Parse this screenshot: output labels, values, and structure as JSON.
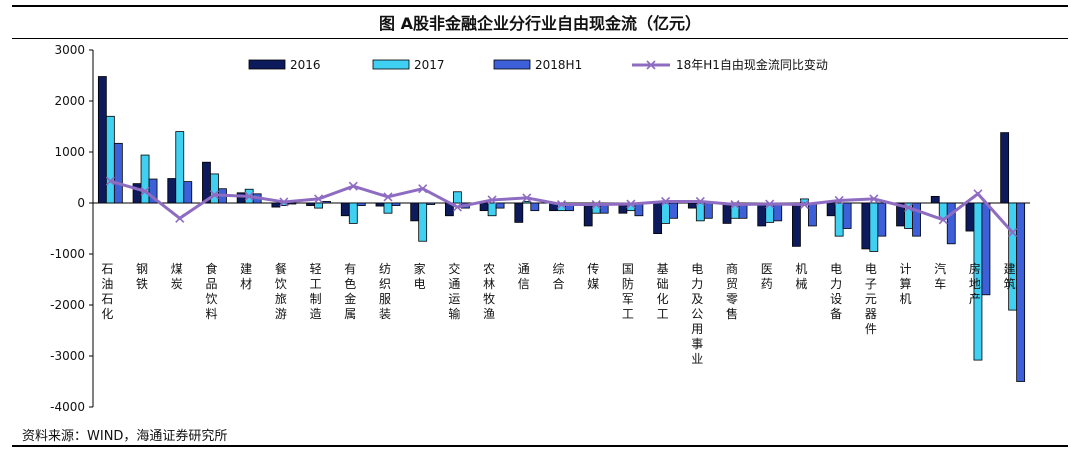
{
  "title": "图 A股非金融企业分行业自由现金流（亿元）",
  "source": "资料来源：WIND，海通证券研究所",
  "colors": {
    "s2016": "#0d1a5c",
    "s2017": "#3fd0f2",
    "s2018": "#3d5fd8",
    "line": "#8e6cc2"
  },
  "chart_data": {
    "type": "bar",
    "ylim": [
      -4000,
      3000
    ],
    "yticks": [
      "3000",
      "2000",
      "1000",
      "0",
      "-1000",
      "-2000",
      "-3000",
      "-4000"
    ],
    "legend_position": "top",
    "categories": [
      "石油石化",
      "钢铁",
      "煤炭",
      "食品饮料",
      "建材",
      "餐饮旅游",
      "轻工制造",
      "有色金属",
      "纺织服装",
      "家电",
      "交通运输",
      "农林牧渔",
      "通信",
      "综合",
      "传媒",
      "国防军工",
      "基础化工",
      "电力及公用事业",
      "商贸零售",
      "医药",
      "机械",
      "电力设备",
      "电子元器件",
      "计算机",
      "汽车",
      "房地产",
      "建筑"
    ],
    "series": [
      {
        "name": "2016",
        "kind": "bar",
        "values": [
          2480,
          380,
          480,
          800,
          200,
          -80,
          -50,
          -250,
          -60,
          -350,
          -250,
          -150,
          -380,
          -150,
          -450,
          -200,
          -600,
          -100,
          -400,
          -450,
          -850,
          -250,
          -900,
          -450,
          130,
          -550,
          1380
        ]
      },
      {
        "name": "2017",
        "kind": "bar",
        "values": [
          1700,
          940,
          1400,
          570,
          270,
          -50,
          -100,
          -400,
          -200,
          -750,
          220,
          -250,
          30,
          -150,
          -200,
          -150,
          -400,
          -350,
          -300,
          -380,
          80,
          -650,
          -950,
          -500,
          -300,
          -3080,
          -2100
        ]
      },
      {
        "name": "2018H1",
        "kind": "bar",
        "values": [
          1170,
          470,
          420,
          280,
          180,
          -20,
          30,
          -50,
          -50,
          -30,
          -100,
          -100,
          -150,
          -150,
          -200,
          -250,
          -300,
          -300,
          -300,
          -350,
          -450,
          -500,
          -650,
          -650,
          -800,
          -1800,
          -3500
        ]
      },
      {
        "name": "18年H1自由现金流同比变动",
        "kind": "line",
        "values": [
          430,
          230,
          -300,
          160,
          130,
          20,
          80,
          330,
          120,
          280,
          -80,
          60,
          100,
          -30,
          -30,
          -20,
          30,
          30,
          -30,
          -20,
          -30,
          50,
          80,
          -90,
          -330,
          180,
          -580
        ]
      }
    ]
  }
}
